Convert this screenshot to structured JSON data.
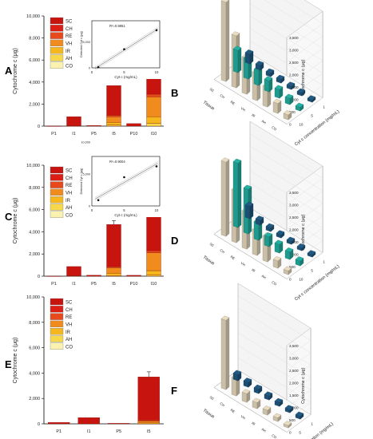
{
  "panels": [
    {
      "letter": "A",
      "side": "left"
    },
    {
      "letter": "B",
      "side": "right"
    },
    {
      "letter": "C",
      "side": "left"
    },
    {
      "letter": "D",
      "side": "right"
    },
    {
      "letter": "E",
      "side": "left"
    },
    {
      "letter": "F",
      "side": "right"
    }
  ],
  "colors": {
    "SC": "#c8140f",
    "CH": "#dc1e14",
    "RE": "#e8491c",
    "VH": "#f08c1e",
    "IR": "#f5b61e",
    "AH": "#f7d84a",
    "CO": "#fbf2b0",
    "beige": "#cbbfa8",
    "teal": "#1f9a8e",
    "navy": "#1d4f73",
    "errorbar": "#444444"
  },
  "chart_data": [
    {
      "panel": "A",
      "type": "bar",
      "ylabel": "Cytochrome c (μg)",
      "yticks": [
        "0",
        "2,000",
        "4,000",
        "6,000",
        "8,000",
        "10,000"
      ],
      "ylim": [
        0,
        10000
      ],
      "categories": [
        "P1",
        "I1",
        "P5",
        "I5",
        "P10",
        "I10"
      ],
      "legend": [
        "SC",
        "CH",
        "RE",
        "VH",
        "IR",
        "AH",
        "CO"
      ],
      "series": [
        {
          "name": "SC",
          "values": [
            5,
            820,
            60,
            2700,
            230,
            4850
          ]
        },
        {
          "name": "RE",
          "values": [
            0,
            20,
            0,
            130,
            0,
            250
          ]
        },
        {
          "name": "VH",
          "values": [
            0,
            20,
            0,
            500,
            0,
            1800
          ]
        },
        {
          "name": "IR",
          "values": [
            0,
            0,
            0,
            250,
            0,
            600
          ]
        },
        {
          "name": "AH",
          "values": [
            0,
            0,
            0,
            100,
            0,
            250
          ]
        }
      ],
      "errors": [
        0,
        0,
        0,
        0,
        0,
        700
      ],
      "inset": {
        "r2": "R²=0.9851",
        "xlabel": "Cyt c (mg/mL)",
        "ylabel": "Detected Cyt c (μg)",
        "xticks": [
          "0",
          "5",
          "10"
        ],
        "yticks": [
          "0",
          "5,000"
        ],
        "x": [
          1,
          5,
          10
        ],
        "y": [
          150,
          3600,
          7300
        ]
      }
    },
    {
      "panel": "B",
      "type": "bar",
      "chart3d": true,
      "zlabel": "Cytochrome c (μg)",
      "xlabel": "Tissue",
      "ylabel": "Cyt c concentration (mg/mL)",
      "zticks": [
        "0",
        "500",
        "1,000",
        "1,500",
        "2,000",
        "2,500",
        "3,000",
        "3,500"
      ],
      "tissues": [
        "SC",
        "CH",
        "RE",
        "VH",
        "IR",
        "AH",
        "CO"
      ],
      "concentrations": [
        "1",
        "5",
        "10"
      ],
      "rows": [
        {
          "conc": "10",
          "values": [
            3200,
            2100,
            1450,
            1100,
            800,
            400,
            200
          ]
        },
        {
          "conc": "5",
          "values": [
            900,
            800,
            600,
            450,
            350,
            250,
            150
          ]
        },
        {
          "conc": "1",
          "values": [
            400,
            200,
            150,
            150,
            130,
            120,
            100
          ]
        }
      ]
    },
    {
      "panel": "C",
      "type": "bar",
      "ylabel": "Cytochrome c (μg)",
      "yticks": [
        "0",
        "2,000",
        "4,000",
        "6,000",
        "8,000",
        "10,000"
      ],
      "ylim": [
        0,
        10000
      ],
      "categories": [
        "P1",
        "I1",
        "P5",
        "I5",
        "P10",
        "I10"
      ],
      "legend": [
        "SC",
        "CH",
        "RE",
        "VH",
        "IR",
        "AH",
        "CO"
      ],
      "series": [
        {
          "name": "SC",
          "values": [
            5,
            820,
            90,
            3800,
            80,
            3950
          ]
        },
        {
          "name": "RE",
          "values": [
            0,
            20,
            0,
            100,
            0,
            200
          ]
        },
        {
          "name": "VH",
          "values": [
            0,
            30,
            0,
            500,
            0,
            1600
          ]
        },
        {
          "name": "IR",
          "values": [
            0,
            0,
            0,
            200,
            0,
            400
          ]
        },
        {
          "name": "AH",
          "values": [
            0,
            0,
            0,
            60,
            0,
            100
          ]
        }
      ],
      "errors": [
        0,
        0,
        0,
        350,
        0,
        700
      ],
      "inset": {
        "r2": "R²=0.9004",
        "xlabel": "Cyt c (mg/mL)",
        "ylabel": "Detected Cyt c (μg)",
        "xticks": [
          "0",
          "5",
          "10"
        ],
        "yticks": [
          "0",
          "5,000",
          "10,000"
        ],
        "x": [
          1,
          5,
          10
        ],
        "y": [
          900,
          4500,
          6200
        ]
      }
    },
    {
      "panel": "D",
      "type": "bar",
      "chart3d": true,
      "zlabel": "Cytochrome c (μg)",
      "xlabel": "Tissue",
      "ylabel": "Cyt c concentration (mg/mL)",
      "zticks": [
        "0",
        "500",
        "1,000",
        "1,500",
        "2,000",
        "2,500",
        "3,000",
        "3,500"
      ],
      "tissues": [
        "SC",
        "CH",
        "RE",
        "VH",
        "IR",
        "AH",
        "CO"
      ],
      "concentrations": [
        "1",
        "5",
        "10"
      ],
      "rows": [
        {
          "conc": "10",
          "values": [
            3000,
            2100,
            1500,
            1000,
            1000,
            300,
            150
          ]
        },
        {
          "conc": "5",
          "values": [
            2600,
            1800,
            700,
            400,
            350,
            300,
            200
          ]
        },
        {
          "conc": "1",
          "values": [
            500,
            200,
            150,
            130,
            120,
            110,
            100
          ]
        }
      ]
    },
    {
      "panel": "E",
      "type": "bar",
      "ylabel": "Cytochrome c (μg)",
      "yticks": [
        "0",
        "2,000",
        "4,000",
        "6,000",
        "8,000",
        "10,000"
      ],
      "ylim": [
        0,
        10000
      ],
      "categories": [
        "P1",
        "I1",
        "P5",
        "I5"
      ],
      "legend": [
        "SC",
        "CH",
        "RE",
        "VH",
        "IR",
        "AH",
        "CO"
      ],
      "series": [
        {
          "name": "SC",
          "values": [
            110,
            490,
            40,
            3400
          ]
        },
        {
          "name": "RE",
          "values": [
            0,
            0,
            0,
            80
          ]
        },
        {
          "name": "VH",
          "values": [
            0,
            0,
            0,
            150
          ]
        },
        {
          "name": "IR",
          "values": [
            0,
            0,
            0,
            70
          ]
        }
      ],
      "errors": [
        0,
        0,
        0,
        400
      ]
    },
    {
      "panel": "F",
      "type": "bar",
      "chart3d": true,
      "zlabel": "Cytochrome c (μg)",
      "xlabel": "Tissue",
      "ylabel": "Cyt c concentration (mg/mL)",
      "zticks": [
        "0",
        "500",
        "1,000",
        "1,500",
        "2,000",
        "2,500",
        "3,000",
        "3,500"
      ],
      "tissues": [
        "SC",
        "CH",
        "RE",
        "VH",
        "IR",
        "AH",
        "CO"
      ],
      "concentrations": [
        "1",
        "5"
      ],
      "rows": [
        {
          "conc": "5",
          "values": [
            2800,
            700,
            350,
            250,
            200,
            150,
            100
          ]
        },
        {
          "conc": "1",
          "values": [
            250,
            200,
            180,
            160,
            150,
            130,
            120
          ]
        }
      ]
    }
  ]
}
